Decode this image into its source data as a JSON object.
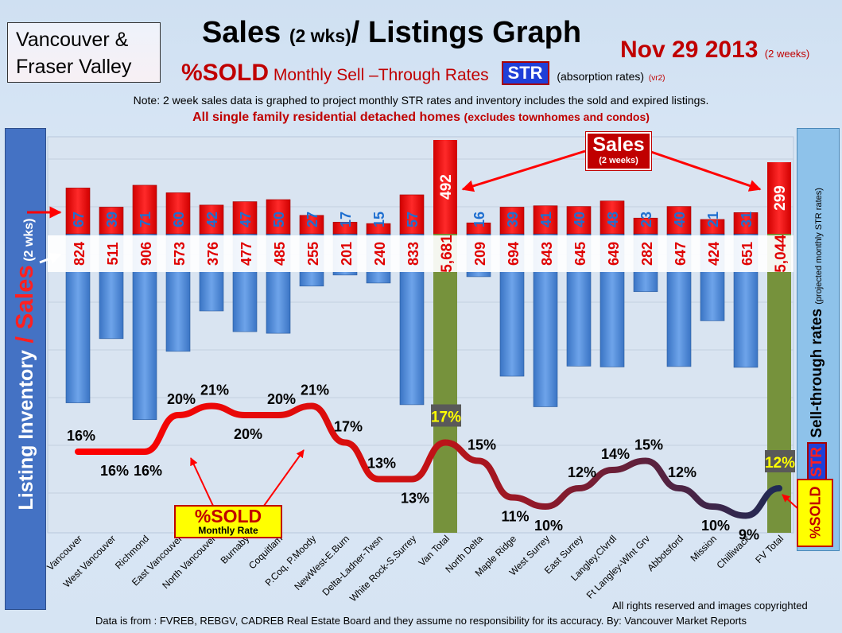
{
  "header": {
    "region_line1": "Vancouver &",
    "region_line2": "Fraser Valley",
    "title_main": "Sales",
    "title_paren": "(2 wks)",
    "title_rest": "/ Listings Graph",
    "date": "Nov 29 2013",
    "date_note": "(2 weeks)",
    "subtitle_sold": "%SOLD",
    "subtitle_rates": "Monthly Sell –Through Rates",
    "subtitle_str": "STR",
    "subtitle_absorption": "(absorption rates)",
    "subtitle_version": "(vr2)",
    "note": "Note: 2 week sales data is graphed to project monthly STR rates and inventory includes the sold and expired listings.",
    "scope_main": "All single family residential detached homes",
    "scope_paren": "(excludes townhomes and condos)"
  },
  "left_axis": {
    "inventory": "Listing Inventory",
    "slash": " / ",
    "sales": "Sales",
    "paren": " (2 wks)"
  },
  "right_axis": {
    "str": "STR",
    "label": "Sell-through rates",
    "paren": "(projected monthly STR rates)"
  },
  "callouts": {
    "sold_main": "%SOLD",
    "sold_sub": "Monthly Rate",
    "sales_main": "Sales",
    "sales_sub": "(2 weeks)",
    "sold_right": "%SOLD"
  },
  "footer": {
    "rights": "All rights reserved and  images copyrighted",
    "source": "Data is  from : FVREB, REBGV, CADREB Real Estate Board and they assume no responsibility  for its accuracy. By: Vancouver Market Reports"
  },
  "colors": {
    "sales": "#ff0000",
    "listings": "#4f8fdc",
    "total_bar": "#76923c",
    "line_start": "#ff0000",
    "line_end": "#1f2a55",
    "text_red": "#c00000",
    "text_blue": "#1f6fd0"
  },
  "chart_data": {
    "type": "bar",
    "categories": [
      "Vancouver",
      "West Vancouver",
      "Richmond",
      "East Vancouver",
      "North Vancouver",
      "Burnaby",
      "Coquitlam",
      "P.Coq, P.Moody",
      "NewWest-E.Burn",
      "Delta-Ladner-Twsn",
      "White Rock-S.Surrey",
      "Van Total",
      "North Delta",
      "Maple Ridge",
      "West Surrey",
      "East Surrey",
      "Langley,Clvrdl",
      "Ft Langley-Wlnt Grv",
      "Abbotsford",
      "Mission",
      "Chilliwack",
      "FV Total"
    ],
    "series": [
      {
        "name": "Sales",
        "values": [
          67,
          39,
          71,
          60,
          42,
          47,
          50,
          27,
          17,
          15,
          57,
          492,
          16,
          39,
          41,
          40,
          48,
          23,
          40,
          21,
          31,
          299
        ]
      },
      {
        "name": "Listing Inventory",
        "values": [
          824,
          511,
          906,
          573,
          376,
          477,
          485,
          255,
          201,
          240,
          833,
          5681,
          209,
          694,
          843,
          645,
          649,
          282,
          647,
          424,
          651,
          5044
        ]
      },
      {
        "name": "%SOLD",
        "values": [
          16,
          16,
          16,
          20,
          21,
          20,
          20,
          21,
          17,
          13,
          13,
          17,
          15,
          11,
          10,
          12,
          14,
          15,
          12,
          10,
          9,
          12
        ]
      }
    ],
    "sold_labels": [
      "16%",
      "16%",
      "16%",
      "20%",
      "21%",
      "20%",
      "20%",
      "21%",
      "17%",
      "13%",
      "13%",
      "17%",
      "15%",
      "11%",
      "10%",
      "12%",
      "14%",
      "15%",
      "12%",
      "10%",
      "9%",
      "12%"
    ],
    "inventory_labels": [
      "824",
      "511",
      "906",
      "573",
      "376",
      "477",
      "485",
      "255",
      "201",
      "240",
      "833",
      "5,681",
      "209",
      "694",
      "843",
      "645",
      "649",
      "282",
      "647",
      "424",
      "651",
      "5,044"
    ]
  }
}
